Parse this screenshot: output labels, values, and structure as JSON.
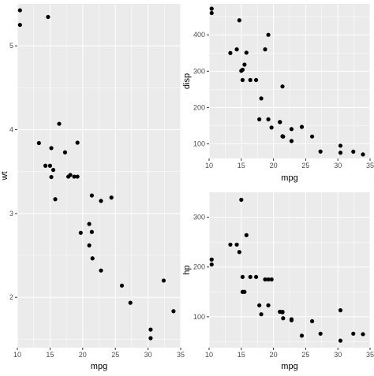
{
  "chart_data": [
    {
      "type": "scatter",
      "id": "wt",
      "xlabel": "mpg",
      "ylabel": "wt",
      "xlim": [
        10,
        35
      ],
      "ylim": [
        1.4,
        5.5
      ],
      "xticks": [
        10,
        15,
        20,
        25,
        30,
        35
      ],
      "yticks": [
        2,
        3,
        4,
        5
      ],
      "grid": true,
      "series": [
        {
          "x": [
            21.0,
            21.0,
            22.8,
            21.4,
            18.7,
            18.1,
            14.3,
            24.4,
            22.8,
            19.2,
            17.8,
            16.4,
            17.3,
            15.2,
            10.4,
            10.4,
            14.7,
            32.4,
            30.4,
            33.9,
            21.5,
            15.5,
            15.2,
            13.3,
            19.2,
            27.3,
            26.0,
            30.4,
            15.8,
            19.7,
            15.0,
            21.4
          ],
          "y": [
            2.62,
            2.875,
            2.32,
            3.215,
            3.44,
            3.46,
            3.57,
            3.19,
            3.15,
            3.44,
            3.44,
            4.07,
            3.73,
            3.78,
            5.25,
            5.424,
            5.345,
            2.2,
            1.615,
            1.835,
            2.465,
            3.52,
            3.435,
            3.84,
            3.845,
            1.935,
            2.14,
            1.513,
            3.17,
            2.77,
            3.57,
            2.78
          ]
        }
      ]
    },
    {
      "type": "scatter",
      "id": "disp",
      "xlabel": "mpg",
      "ylabel": "disp",
      "xlim": [
        10,
        35
      ],
      "ylim": [
        60,
        485
      ],
      "xticks": [
        10,
        15,
        20,
        25,
        30,
        35
      ],
      "yticks": [
        100,
        200,
        300,
        400
      ],
      "grid": true,
      "series": [
        {
          "x": [
            21.0,
            21.0,
            22.8,
            21.4,
            18.7,
            18.1,
            14.3,
            24.4,
            22.8,
            19.2,
            17.8,
            16.4,
            17.3,
            15.2,
            10.4,
            10.4,
            14.7,
            32.4,
            30.4,
            33.9,
            21.5,
            15.5,
            15.2,
            13.3,
            19.2,
            27.3,
            26.0,
            30.4,
            15.8,
            19.7,
            15.0,
            21.4
          ],
          "y": [
            160,
            160,
            108,
            258,
            360,
            225,
            360,
            146.7,
            140.8,
            167.6,
            167.6,
            275.8,
            275.8,
            275.8,
            472,
            460,
            440,
            78.7,
            75.7,
            71.1,
            120.1,
            318,
            304,
            350,
            400,
            79,
            120.3,
            95.1,
            351,
            145,
            301,
            121
          ]
        }
      ]
    },
    {
      "type": "scatter",
      "id": "hp",
      "xlabel": "mpg",
      "ylabel": "hp",
      "xlim": [
        10,
        35
      ],
      "ylim": [
        38,
        350
      ],
      "xticks": [
        10,
        15,
        20,
        25,
        30,
        35
      ],
      "yticks": [
        100,
        200,
        300
      ],
      "grid": true,
      "series": [
        {
          "x": [
            21.0,
            21.0,
            22.8,
            21.4,
            18.7,
            18.1,
            14.3,
            24.4,
            22.8,
            19.2,
            17.8,
            16.4,
            17.3,
            15.2,
            10.4,
            10.4,
            14.7,
            32.4,
            30.4,
            33.9,
            21.5,
            15.5,
            15.2,
            13.3,
            19.2,
            27.3,
            26.0,
            30.4,
            15.8,
            19.7,
            15.0,
            21.4
          ],
          "y": [
            110,
            110,
            93,
            110,
            175,
            105,
            245,
            62,
            95,
            123,
            123,
            180,
            180,
            180,
            205,
            215,
            230,
            66,
            52,
            65,
            97,
            150,
            150,
            245,
            175,
            66,
            91,
            113,
            264,
            175,
            335,
            109
          ]
        }
      ]
    }
  ]
}
